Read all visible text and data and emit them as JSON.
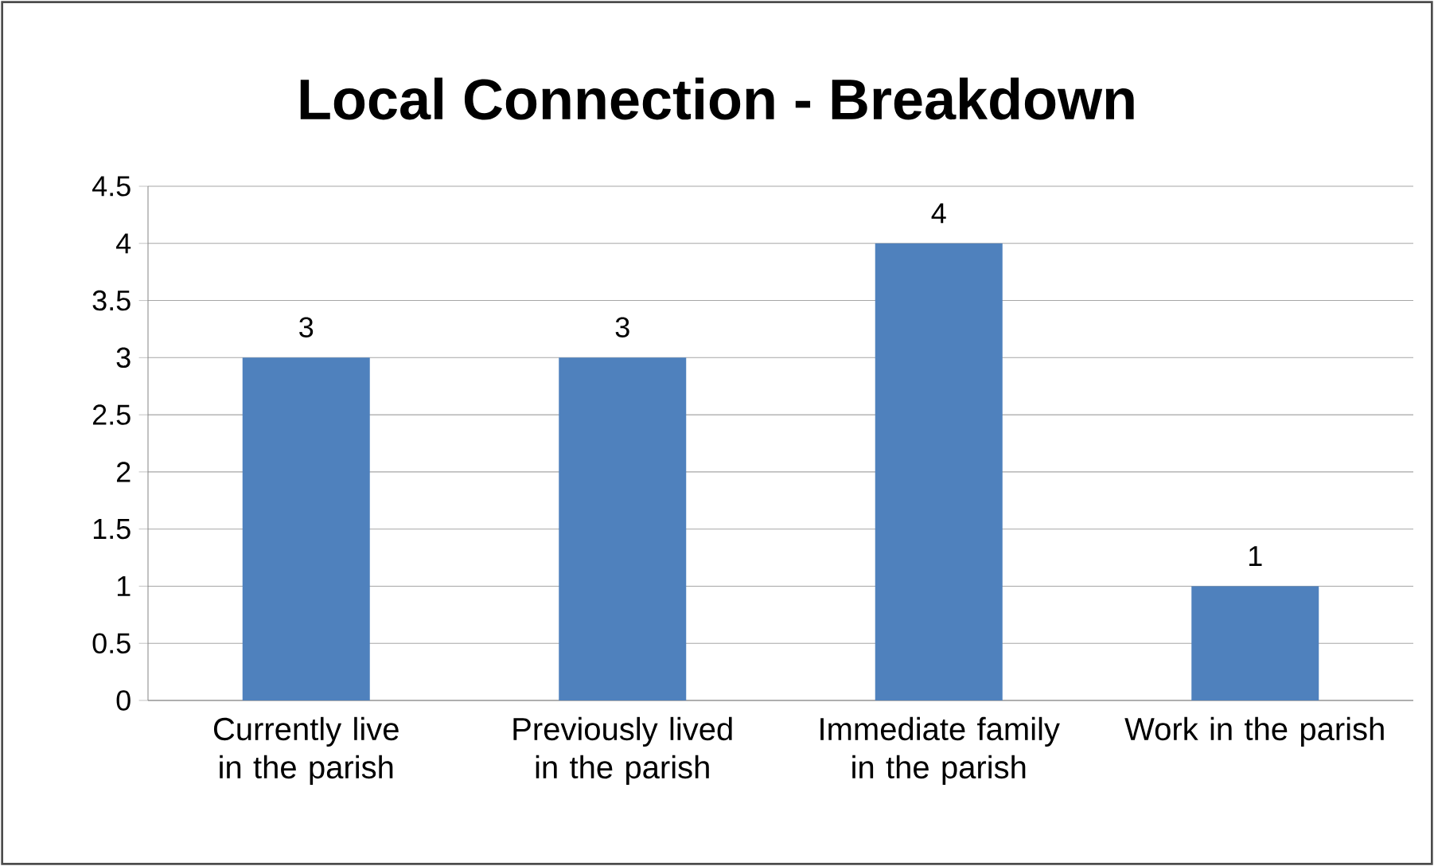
{
  "chart_data": {
    "type": "bar",
    "title": "Local Connection - Breakdown",
    "categories": [
      "Currently live in the parish",
      "Previously lived in the parish",
      "Immediate family in the parish",
      "Work in the parish"
    ],
    "values": [
      3,
      3,
      4,
      1
    ],
    "color": "#4f81bd",
    "ylim": [
      0,
      4.5
    ],
    "yticks": [
      0,
      0.5,
      1,
      1.5,
      2,
      2.5,
      3,
      3.5,
      4,
      4.5
    ],
    "grid": "y",
    "data_labels": true
  }
}
